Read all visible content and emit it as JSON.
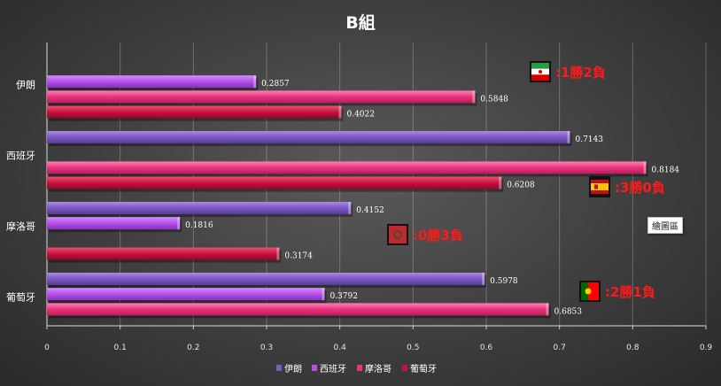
{
  "chart_data": {
    "type": "bar",
    "orientation": "horizontal",
    "title": "B組",
    "categories": [
      "伊朗",
      "西班牙",
      "摩洛哥",
      "葡萄牙"
    ],
    "series": [
      {
        "name": "伊朗",
        "color": "#7e57c2",
        "values": [
          null,
          0.7143,
          0.4152,
          0.5978
        ]
      },
      {
        "name": "西班牙",
        "color": "#b44fe8",
        "values": [
          0.2857,
          null,
          0.1816,
          0.3792
        ]
      },
      {
        "name": "摩洛哥",
        "color": "#e8337d",
        "values": [
          0.5848,
          0.8184,
          null,
          0.6853
        ]
      },
      {
        "name": "葡萄牙",
        "color": "#c4123e",
        "values": [
          0.4022,
          0.6208,
          0.3174,
          null
        ]
      }
    ],
    "xlim": [
      0,
      0.9
    ],
    "xticks": [
      "0",
      "0.1",
      "0.2",
      "0.3",
      "0.4",
      "0.5",
      "0.6",
      "0.7",
      "0.8",
      "0.9"
    ],
    "grid": true,
    "legend": "bottom",
    "annotations": [
      {
        "team": "伊朗",
        "flag": "iran-flag-icon",
        "text": ":1勝2負"
      },
      {
        "team": "西班牙",
        "flag": "spain-flag-icon",
        "text": ":3勝0負"
      },
      {
        "team": "摩洛哥",
        "flag": "morocco-flag-icon",
        "text": ":0勝3負"
      },
      {
        "team": "葡萄牙",
        "flag": "portugal-flag-icon",
        "text": ":2勝1負"
      }
    ]
  },
  "plot_area_label": "繪圖區"
}
